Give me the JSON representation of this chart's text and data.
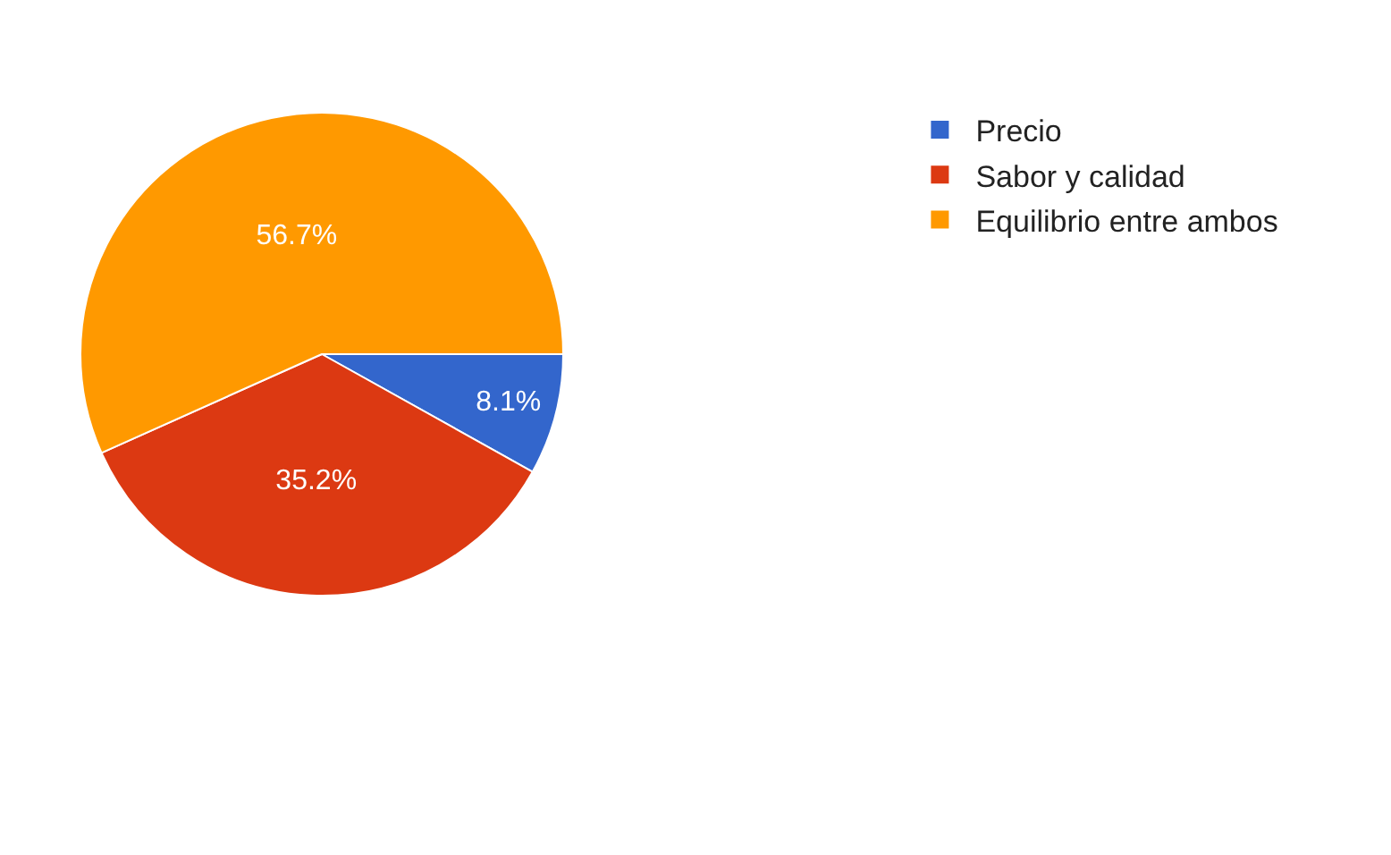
{
  "chart_data": {
    "type": "pie",
    "categories": [
      "Precio",
      "Sabor y calidad",
      "Equilibrio entre ambos"
    ],
    "values": [
      8.1,
      35.2,
      56.7
    ],
    "value_labels": [
      "8.1%",
      "35.2%",
      "56.7%"
    ],
    "colors": [
      "#3366cc",
      "#dc3912",
      "#ff9900"
    ],
    "legend": "top right"
  }
}
